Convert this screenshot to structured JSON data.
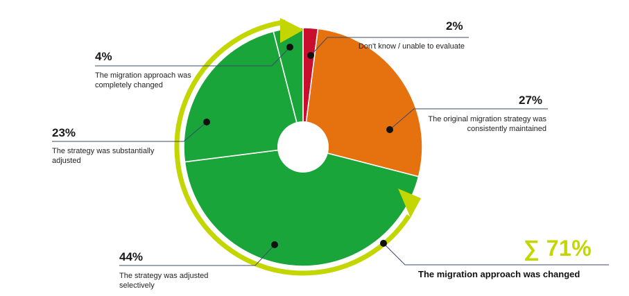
{
  "chart_data": {
    "type": "pie",
    "title": "",
    "slices": [
      {
        "label": "Don't know / unable to evaluate",
        "value": 2,
        "value_label": "2%",
        "color": "#c8102e"
      },
      {
        "label": "The original migration strategy was consistently maintained",
        "value": 27,
        "value_label": "27%",
        "color": "#e5720e"
      },
      {
        "label": "The strategy was adjusted selectively",
        "value": 44,
        "value_label": "44%",
        "color": "#1aa53b"
      },
      {
        "label": "The strategy was substantially adjusted",
        "value": 23,
        "value_label": "23%",
        "color": "#1aa53b"
      },
      {
        "label": "The migration approach was completely changed",
        "value": 4,
        "value_label": "4%",
        "color": "#1aa53b"
      }
    ],
    "summary": {
      "value_label": "∑ 71%",
      "label": "The migration approach was changed",
      "color": "#c3d600"
    }
  }
}
